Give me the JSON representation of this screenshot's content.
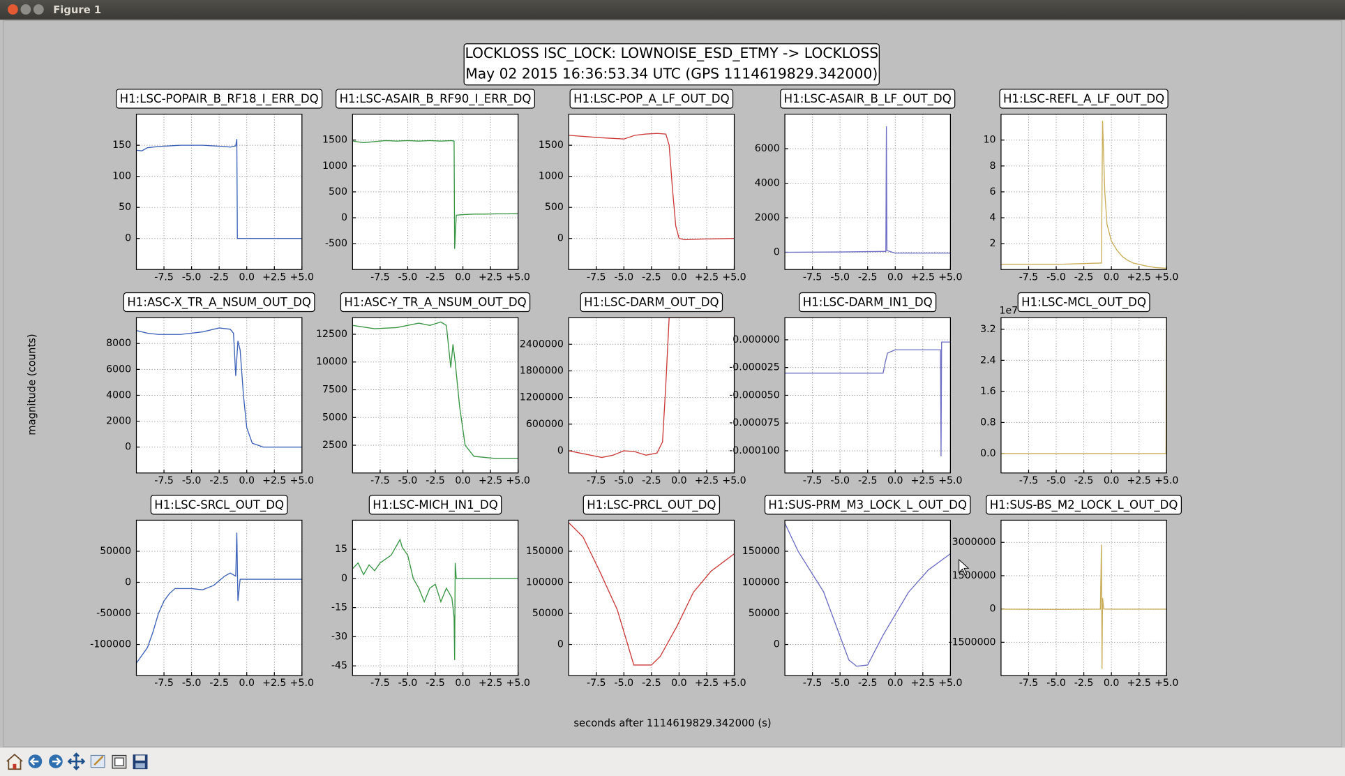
{
  "window": {
    "title": "Figure 1"
  },
  "figure": {
    "title": "LOCKLOSS ISC_LOCK: LOWNOISE_ESD_ETMY -> LOCKLOSS",
    "subtitle": "May 02 2015 16:36:53.34 UTC (GPS 1114619829.342000)",
    "xlabel": "seconds after 1114619829.342000 (s)",
    "ylabel": "magnitude (counts)"
  },
  "chart_data": [
    {
      "type": "line",
      "title": "H1:LSC-POPAIR_B_RF18_I_ERR_DQ",
      "color": "#3d62b8",
      "x": [
        -10,
        -9.5,
        -9,
        -8,
        -7,
        -6,
        -5,
        -4,
        -3,
        -2,
        -1.5,
        -1,
        -0.9,
        -0.85,
        -0.6,
        0,
        1,
        2,
        3,
        4,
        5
      ],
      "values": [
        142,
        141,
        146,
        148,
        149,
        150,
        150,
        150,
        149,
        148,
        147,
        149,
        160,
        0,
        0,
        0,
        0,
        0,
        0,
        0,
        0
      ],
      "xlim": [
        -10,
        5
      ],
      "ylim": [
        -50,
        200
      ],
      "xticks": [
        -7.5,
        {
          "value": -5,
          "label": "-5.0"
        },
        -2.5,
        {
          "value": 0,
          "label": "0.0"
        },
        {
          "value": 2.5,
          "label": "+2.5"
        },
        {
          "value": 5,
          "label": "+5.0"
        }
      ],
      "yticks": [
        0,
        50,
        100,
        150
      ],
      "grid": true
    },
    {
      "type": "line",
      "title": "H1:LSC-ASAIR_B_RF90_I_ERR_DQ",
      "color": "#3a9645",
      "x": [
        -10,
        -9,
        -8,
        -7,
        -6,
        -5,
        -4,
        -3,
        -2,
        -1,
        -0.8,
        -0.75,
        -0.6,
        0,
        1,
        2,
        3,
        4,
        5
      ],
      "values": [
        1480,
        1450,
        1470,
        1490,
        1480,
        1490,
        1480,
        1490,
        1480,
        1490,
        1480,
        -600,
        50,
        60,
        70,
        70,
        75,
        75,
        80
      ],
      "xlim": [
        -10,
        5
      ],
      "ylim": [
        -1000,
        2000
      ],
      "xticks": [
        -7.5,
        {
          "value": -5,
          "label": "-5.0"
        },
        -2.5,
        {
          "value": 0,
          "label": "0.0"
        },
        {
          "value": 2.5,
          "label": "+2.5"
        },
        {
          "value": 5,
          "label": "+5.0"
        }
      ],
      "yticks": [
        -500,
        0,
        500,
        1000,
        1500
      ],
      "grid": true
    },
    {
      "type": "line",
      "title": "H1:LSC-POP_A_LF_OUT_DQ",
      "color": "#cc3b3b",
      "x": [
        -10,
        -8.5,
        -7,
        -5,
        -4,
        -3,
        -2,
        -1.2,
        -0.9,
        -0.6,
        -0.3,
        0,
        0.5,
        2,
        3.5,
        5
      ],
      "values": [
        1660,
        1640,
        1620,
        1600,
        1660,
        1680,
        1690,
        1680,
        1500,
        800,
        200,
        0,
        -20,
        -10,
        -5,
        0
      ],
      "xlim": [
        -10,
        5
      ],
      "ylim": [
        -500,
        2000
      ],
      "xticks": [
        -7.5,
        {
          "value": -5,
          "label": "-5.0"
        },
        -2.5,
        {
          "value": 0,
          "label": "0.0"
        },
        {
          "value": 2.5,
          "label": "+2.5"
        },
        {
          "value": 5,
          "label": "+5.0"
        }
      ],
      "yticks": [
        0,
        500,
        1000,
        1500
      ],
      "grid": true
    },
    {
      "type": "line",
      "title": "H1:LSC-ASAIR_B_LF_OUT_DQ",
      "color": "#6e6ec4",
      "x": [
        -10,
        -5,
        -1,
        -0.85,
        -0.8,
        -0.75,
        0,
        5
      ],
      "values": [
        0,
        20,
        50,
        50,
        7300,
        100,
        -50,
        -50
      ],
      "xlim": [
        -10,
        5
      ],
      "ylim": [
        -1000,
        8000
      ],
      "xticks": [
        -7.5,
        {
          "value": -5,
          "label": "-5.0"
        },
        -2.5,
        {
          "value": 0,
          "label": "0.0"
        },
        {
          "value": 2.5,
          "label": "+2.5"
        },
        {
          "value": 5,
          "label": "+5.0"
        }
      ],
      "yticks": [
        0,
        2000,
        4000,
        6000
      ],
      "grid": true
    },
    {
      "type": "line",
      "title": "H1:LSC-REFL_A_LF_OUT_DQ",
      "color": "#c9ae5a",
      "x": [
        -10,
        -5,
        -1,
        -0.9,
        -0.8,
        -0.6,
        -0.4,
        0,
        0.5,
        1,
        1.5,
        2,
        3,
        4,
        5
      ],
      "values": [
        0.4,
        0.4,
        0.5,
        0.5,
        11.5,
        6,
        3.5,
        2.2,
        1.5,
        1.0,
        0.7,
        0.5,
        0.3,
        0.15,
        0.1
      ],
      "xlim": [
        -10,
        5
      ],
      "ylim": [
        0,
        12
      ],
      "xticks": [
        -7.5,
        {
          "value": -5,
          "label": "-5.0"
        },
        -2.5,
        {
          "value": 0,
          "label": "0.0"
        },
        {
          "value": 2.5,
          "label": "+2.5"
        },
        {
          "value": 5,
          "label": "+5.0"
        }
      ],
      "yticks": [
        2,
        4,
        6,
        8,
        10
      ],
      "grid": true
    },
    {
      "type": "line",
      "title": "H1:ASC-X_TR_A_NSUM_OUT_DQ",
      "color": "#3d62b8",
      "x": [
        -10,
        -9,
        -8,
        -6,
        -5,
        -4,
        -2.5,
        -1.5,
        -1.2,
        -1,
        -0.8,
        -0.6,
        -0.3,
        0,
        0.5,
        1.5,
        3,
        5
      ],
      "values": [
        9000,
        8800,
        8700,
        8700,
        8800,
        8900,
        9200,
        9100,
        8800,
        5500,
        8200,
        7500,
        4000,
        1500,
        300,
        0,
        0,
        0
      ],
      "xlim": [
        -10,
        5
      ],
      "ylim": [
        -2000,
        10000
      ],
      "xticks": [
        -7.5,
        {
          "value": -5,
          "label": "-5.0"
        },
        -2.5,
        {
          "value": 0,
          "label": "0.0"
        },
        {
          "value": 2.5,
          "label": "+2.5"
        },
        {
          "value": 5,
          "label": "+5.0"
        }
      ],
      "yticks": [
        0,
        2000,
        4000,
        6000,
        8000
      ],
      "grid": true
    },
    {
      "type": "line",
      "title": "H1:ASC-Y_TR_A_NSUM_OUT_DQ",
      "color": "#3a9645",
      "x": [
        -10,
        -8,
        -6,
        -4,
        -3,
        -2,
        -1.5,
        -1.1,
        -0.9,
        -0.7,
        -0.3,
        0.2,
        1,
        3,
        5
      ],
      "values": [
        13300,
        13000,
        13100,
        13500,
        13300,
        13600,
        13300,
        9500,
        11600,
        10000,
        6000,
        2500,
        1500,
        1300,
        1300
      ],
      "xlim": [
        -10,
        5
      ],
      "ylim": [
        0,
        14000
      ],
      "xticks": [
        -7.5,
        {
          "value": -5,
          "label": "-5.0"
        },
        -2.5,
        {
          "value": 0,
          "label": "0.0"
        },
        {
          "value": 2.5,
          "label": "+2.5"
        },
        {
          "value": 5,
          "label": "+5.0"
        }
      ],
      "yticks": [
        2500,
        5000,
        7500,
        10000,
        12500
      ],
      "grid": true
    },
    {
      "type": "line",
      "title": "H1:LSC-DARM_OUT_DQ",
      "color": "#cc3b3b",
      "x": [
        -10,
        -9,
        -8,
        -7,
        -6,
        -5,
        -4,
        -3,
        -2,
        -1.5,
        -1.2,
        -0.9,
        5
      ],
      "values": [
        0,
        -50000,
        -100000,
        -150000,
        -100000,
        0,
        -20000,
        -100000,
        -50000,
        200000,
        1500000,
        3000000,
        3000000
      ],
      "xlim": [
        -10,
        5
      ],
      "ylim": [
        -500000,
        3000000
      ],
      "xticks": [
        -7.5,
        {
          "value": -5,
          "label": "-5.0"
        },
        -2.5,
        {
          "value": 0,
          "label": "0.0"
        },
        {
          "value": 2.5,
          "label": "+2.5"
        },
        {
          "value": 5,
          "label": "+5.0"
        }
      ],
      "yticks": [
        0,
        600000,
        1200000,
        1800000,
        2400000
      ],
      "grid": true
    },
    {
      "type": "line",
      "title": "H1:LSC-DARM_IN1_DQ",
      "color": "#6e6ec4",
      "x": [
        -10,
        -1.1,
        -1,
        -0.9,
        -0.7,
        0,
        4.1,
        4.15,
        4.2,
        5
      ],
      "values": [
        -3e-05,
        -3e-05,
        -2.5e-05,
        -2e-05,
        -1.2e-05,
        -9e-06,
        -9e-06,
        -0.000105,
        -2e-06,
        -2e-06
      ],
      "xlim": [
        -10,
        5
      ],
      "ylim": [
        -0.00012,
        2e-05
      ],
      "xticks": [
        -7.5,
        {
          "value": -5,
          "label": "-5.0"
        },
        -2.5,
        {
          "value": 0,
          "label": "0.0"
        },
        {
          "value": 2.5,
          "label": "+2.5"
        },
        {
          "value": 5,
          "label": "+5.0"
        }
      ],
      "yticks": [
        {
          "value": 0,
          "label": "0.000000"
        },
        -2.5e-05,
        {
          "value": -5e-05,
          "label": "-0.000050"
        },
        -7.5e-05,
        {
          "value": -0.0001,
          "label": "-0.000100"
        }
      ],
      "grid": true
    },
    {
      "type": "line",
      "title": "H1:LSC-MCL_OUT_DQ",
      "color": "#c9ae5a",
      "x": [
        -10,
        -5,
        0,
        4.95,
        5
      ],
      "values": [
        0,
        0,
        0,
        0,
        35000000
      ],
      "xlim": [
        -10,
        5
      ],
      "ylim": [
        -5000000,
        35000000
      ],
      "xticks": [
        -7.5,
        {
          "value": -5,
          "label": "-5.0"
        },
        -2.5,
        {
          "value": 0,
          "label": "0.0"
        },
        {
          "value": 2.5,
          "label": "+2.5"
        },
        {
          "value": 5,
          "label": "+5.0"
        }
      ],
      "yticks": [
        {
          "value": 0,
          "label": "0.0"
        },
        {
          "value": 8000000,
          "label": "0.8"
        },
        {
          "value": 16000000,
          "label": "1.6"
        },
        {
          "value": 24000000,
          "label": "2.4"
        },
        {
          "value": 32000000,
          "label": "3.2"
        }
      ],
      "offset_text": "1e7",
      "grid": true
    },
    {
      "type": "line",
      "title": "H1:LSC-SRCL_OUT_DQ",
      "color": "#3d62b8",
      "x": [
        -10,
        -9,
        -8.5,
        -8,
        -7.5,
        -7,
        -6.5,
        -5,
        -4,
        -3,
        -2,
        -1.5,
        -1,
        -0.9,
        -0.8,
        -0.6,
        0,
        5
      ],
      "values": [
        -130000,
        -105000,
        -80000,
        -50000,
        -30000,
        -18000,
        -10000,
        -10000,
        -12000,
        -5000,
        10000,
        15000,
        10000,
        80000,
        -30000,
        5000,
        5000,
        5000
      ],
      "xlim": [
        -10,
        5
      ],
      "ylim": [
        -150000,
        100000
      ],
      "xticks": [
        -7.5,
        {
          "value": -5,
          "label": "-5.0"
        },
        -2.5,
        {
          "value": 0,
          "label": "0.0"
        },
        {
          "value": 2.5,
          "label": "+2.5"
        },
        {
          "value": 5,
          "label": "+5.0"
        }
      ],
      "yticks": [
        -100000,
        -50000,
        0,
        50000
      ],
      "grid": true
    },
    {
      "type": "line",
      "title": "H1:LSC-MICH_IN1_DQ",
      "color": "#3a9645",
      "x": [
        -10,
        -9.5,
        -9,
        -8.5,
        -8,
        -7.5,
        -7,
        -6.5,
        -6,
        -5.7,
        -5.5,
        -5,
        -4.5,
        -4,
        -3.5,
        -3,
        -2.5,
        -2,
        -1.5,
        -1.2,
        -1,
        -0.8,
        -0.75,
        -0.7,
        -0.6,
        0,
        5
      ],
      "values": [
        5,
        8,
        2,
        7,
        4,
        8,
        10,
        12,
        17,
        20,
        16,
        12,
        0,
        -5,
        -12,
        -5,
        -3,
        -12,
        -5,
        -8,
        -10,
        -20,
        -42,
        8,
        0,
        0,
        0
      ],
      "xlim": [
        -10,
        5
      ],
      "ylim": [
        -50,
        30
      ],
      "xticks": [
        -7.5,
        {
          "value": -5,
          "label": "-5.0"
        },
        -2.5,
        {
          "value": 0,
          "label": "0.0"
        },
        {
          "value": 2.5,
          "label": "+2.5"
        },
        {
          "value": 5,
          "label": "+5.0"
        }
      ],
      "yticks": [
        -45,
        -30,
        -15,
        0,
        15
      ],
      "grid": true
    },
    {
      "type": "line",
      "title": "H1:LSC-PRCL_OUT_DQ",
      "color": "#cc3b3b",
      "x": [
        -10,
        -8.7,
        -7.2,
        -5.6,
        -4.1,
        -2.5,
        -1.7,
        -0.2,
        1.3,
        2.9,
        5
      ],
      "values": [
        196000,
        173000,
        118000,
        56000,
        -33000,
        -33000,
        -19000,
        29000,
        84000,
        118000,
        146000
      ],
      "xlim": [
        -10,
        5
      ],
      "ylim": [
        -50000,
        200000
      ],
      "xticks": [
        -7.5,
        {
          "value": -5,
          "label": "-5.0"
        },
        -2.5,
        {
          "value": 0,
          "label": "0.0"
        },
        {
          "value": 2.5,
          "label": "+2.5"
        },
        {
          "value": 5,
          "label": "+5.0"
        }
      ],
      "yticks": [
        0,
        50000,
        100000,
        150000
      ],
      "grid": true
    },
    {
      "type": "line",
      "title": "H1:SUS-PRM_M3_LOCK_L_OUT_DQ",
      "color": "#6e6ec4",
      "x": [
        -10,
        -8.8,
        -6.5,
        -4.2,
        -3.5,
        -2.5,
        -1.1,
        1.2,
        3,
        5
      ],
      "values": [
        195000,
        150000,
        85000,
        -25000,
        -35000,
        -33000,
        15000,
        84000,
        120000,
        146000
      ],
      "xlim": [
        -10,
        5
      ],
      "ylim": [
        -50000,
        200000
      ],
      "xticks": [
        -7.5,
        {
          "value": -5,
          "label": "-5.0"
        },
        -2.5,
        {
          "value": 0,
          "label": "0.0"
        },
        {
          "value": 2.5,
          "label": "+2.5"
        },
        {
          "value": 5,
          "label": "+5.0"
        }
      ],
      "yticks": [
        0,
        50000,
        100000,
        150000
      ],
      "grid": true
    },
    {
      "type": "line",
      "title": "H1:SUS-BS_M2_LOCK_L_OUT_DQ",
      "color": "#c9ae5a",
      "x": [
        -10,
        -5,
        -1,
        -0.9,
        -0.85,
        -0.8,
        -0.7,
        0,
        5
      ],
      "values": [
        -10000,
        -20000,
        -10000,
        2900000,
        -2700000,
        500000,
        0,
        -10000,
        -10000
      ],
      "xlim": [
        -10,
        5
      ],
      "ylim": [
        -3000000,
        4000000
      ],
      "xticks": [
        -7.5,
        {
          "value": -5,
          "label": "-5.0"
        },
        -2.5,
        {
          "value": 0,
          "label": "0.0"
        },
        {
          "value": 2.5,
          "label": "+2.5"
        },
        {
          "value": 5,
          "label": "+5.0"
        }
      ],
      "yticks": [
        -1500000,
        0,
        1500000,
        3000000
      ],
      "grid": true
    }
  ]
}
